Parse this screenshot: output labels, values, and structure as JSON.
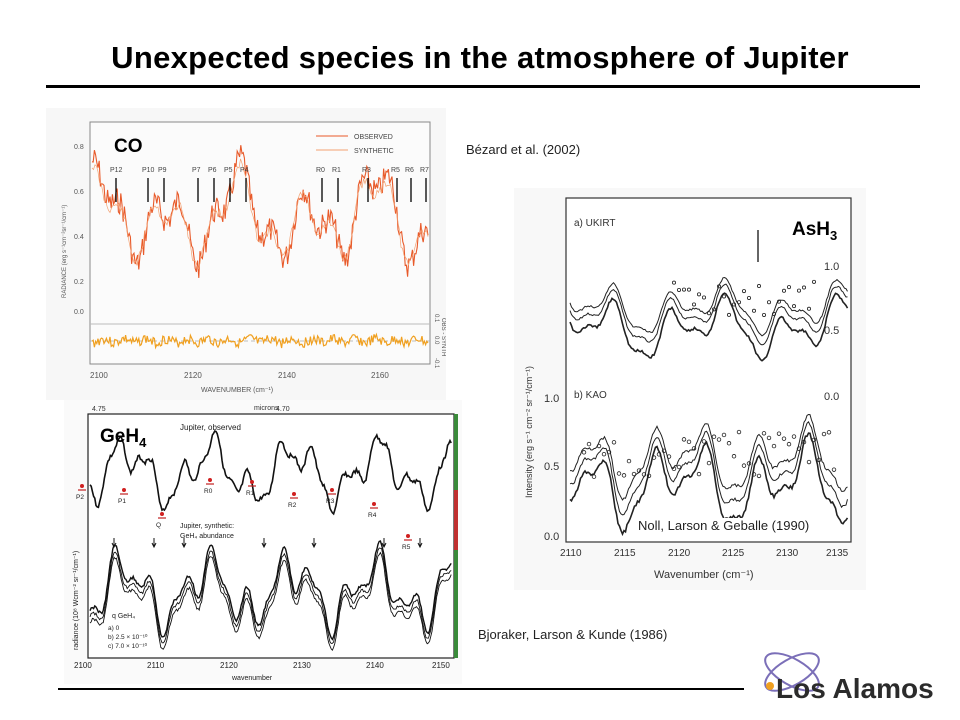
{
  "slide": {
    "title": "Unexpected species in the atmosphere of Jupiter"
  },
  "co_panel": {
    "species": "CO",
    "citation": "Bézard et al. (2002)",
    "legend": [
      "OBSERVED",
      "SYNTHETIC"
    ],
    "line_labels": [
      "P12",
      "P10",
      "P9",
      "P7",
      "P6",
      "P5",
      "P4",
      "R0",
      "R1",
      "R3",
      "R5",
      "R6",
      "R7"
    ],
    "y_ticks": [
      "0.8",
      "0.6",
      "0.4",
      "0.2",
      "0.0"
    ],
    "x_ticks": [
      "2100",
      "2120",
      "2140",
      "2160"
    ],
    "xlabel": "WAVENUMBER (cm⁻¹)",
    "ylabel": "RADIANCE (erg s⁻¹cm⁻²sr⁻¹/cm⁻¹)",
    "right_label": "OBS - SYNTH",
    "right_ticks": [
      "0.1",
      "0.0",
      "-0.1"
    ]
  },
  "ash3_panel": {
    "species_base": "AsH",
    "species_sub": "3",
    "citation": "Noll, Larson & Geballe (1990)",
    "top_label": "a) UKIRT",
    "bottom_label": "b) KAO",
    "x_ticks": [
      "2110",
      "2115",
      "2120",
      "2125",
      "2130",
      "2135"
    ],
    "xlabel": "Wavenumber (cm⁻¹)",
    "ylabel": "Intensity (erg s⁻¹ cm⁻² sr⁻¹/cm⁻¹)",
    "left_ticks": [
      "1.0",
      "0.5",
      "0.0"
    ],
    "right_ticks": [
      "1.0",
      "0.5",
      "0.0"
    ]
  },
  "geh4_panel": {
    "species_base": "GeH",
    "species_sub": "4",
    "citation": "Bjoraker, Larson & Kunde (1986)",
    "microns_label": "microns",
    "micron_ticks": [
      "4.75",
      "4.70"
    ],
    "observed_label": "Jupiter, observed",
    "synthetic_label": "Jupiter, synthetic:",
    "abundance_label": "GeH₄ abundance",
    "line_labels": [
      "P2",
      "P1",
      "R0",
      "R1",
      "R2",
      "R3",
      "R4",
      "R5",
      "Q"
    ],
    "legend_title": "q GeH₄",
    "legend_items": [
      "a) 0",
      "b) 2.5 × 10⁻¹⁰",
      "c) 7.0 × 10⁻¹⁰"
    ],
    "x_ticks": [
      "2100",
      "2110",
      "2120",
      "2130",
      "2140",
      "2150"
    ],
    "xlabel": "wavenumber",
    "ylabel": "radiance (10⁸ Wcm⁻² sr⁻¹/cm⁻¹)"
  },
  "footer": {
    "logo_text": "Los Alamos"
  }
}
